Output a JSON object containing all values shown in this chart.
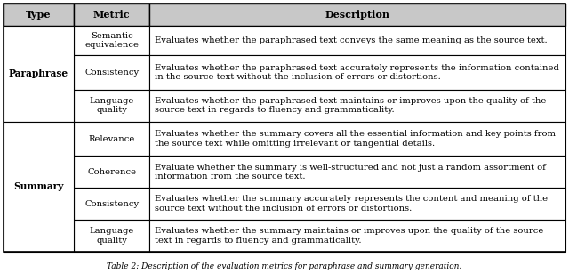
{
  "headers": [
    "Type",
    "Metric",
    "Description"
  ],
  "header_bg": "#c8c8c8",
  "rows": [
    {
      "type": "Paraphrase",
      "metric": "Semantic\nequivalence",
      "description": "Evaluates whether the paraphrased text conveys the same meaning as the source text."
    },
    {
      "type": "Paraphrase",
      "metric": "Consistency",
      "description": "Evaluates whether the paraphrased text accurately represents the information contained\nin the source text without the inclusion of errors or distortions."
    },
    {
      "type": "Paraphrase",
      "metric": "Language\nquality",
      "description": "Evaluates whether the paraphrased text maintains or improves upon the quality of the\nsource text in regards to fluency and grammaticality."
    },
    {
      "type": "Summary",
      "metric": "Relevance",
      "description": "Evaluates whether the summary covers all the essential information and key points from\nthe source text while omitting irrelevant or tangential details."
    },
    {
      "type": "Summary",
      "metric": "Coherence",
      "description": "Evaluate whether the summary is well-structured and not just a random assortment of\ninformation from the source text."
    },
    {
      "type": "Summary",
      "metric": "Consistency",
      "description": "Evaluates whether the summary accurately represents the content and meaning of the\nsource text without the inclusion of errors or distortions."
    },
    {
      "type": "Summary",
      "metric": "Language\nquality",
      "description": "Evaluates whether the summary maintains or improves upon the quality of the source\ntext in regards to fluency and grammaticality."
    }
  ],
  "paraphrase_rows": [
    0,
    1,
    2
  ],
  "summary_rows": [
    3,
    4,
    5,
    6
  ],
  "bg_color": "#ffffff",
  "border_color": "#000000",
  "text_color": "#000000",
  "font_size": 7.2,
  "header_font_size": 8.0
}
